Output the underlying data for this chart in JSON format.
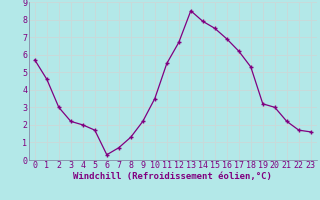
{
  "x": [
    0,
    1,
    2,
    3,
    4,
    5,
    6,
    7,
    8,
    9,
    10,
    11,
    12,
    13,
    14,
    15,
    16,
    17,
    18,
    19,
    20,
    21,
    22,
    23
  ],
  "y": [
    5.7,
    4.6,
    3.0,
    2.2,
    2.0,
    1.7,
    0.3,
    0.7,
    1.3,
    2.2,
    3.5,
    5.5,
    6.7,
    8.5,
    7.9,
    7.5,
    6.9,
    6.2,
    5.3,
    3.2,
    3.0,
    2.2,
    1.7,
    1.6
  ],
  "line_color": "#800080",
  "marker": "+",
  "marker_color": "#800080",
  "bg_color": "#b3e8e8",
  "grid_color": "#c8dada",
  "border_color": "#7a7a9a",
  "xlabel": "Windchill (Refroidissement éolien,°C)",
  "xlabel_color": "#800080",
  "tick_color": "#800080",
  "xlim": [
    -0.5,
    23.5
  ],
  "ylim": [
    0,
    9
  ],
  "xticks": [
    0,
    1,
    2,
    3,
    4,
    5,
    6,
    7,
    8,
    9,
    10,
    11,
    12,
    13,
    14,
    15,
    16,
    17,
    18,
    19,
    20,
    21,
    22,
    23
  ],
  "yticks": [
    0,
    1,
    2,
    3,
    4,
    5,
    6,
    7,
    8,
    9
  ],
  "xlabel_fontsize": 6.5,
  "tick_fontsize": 6
}
